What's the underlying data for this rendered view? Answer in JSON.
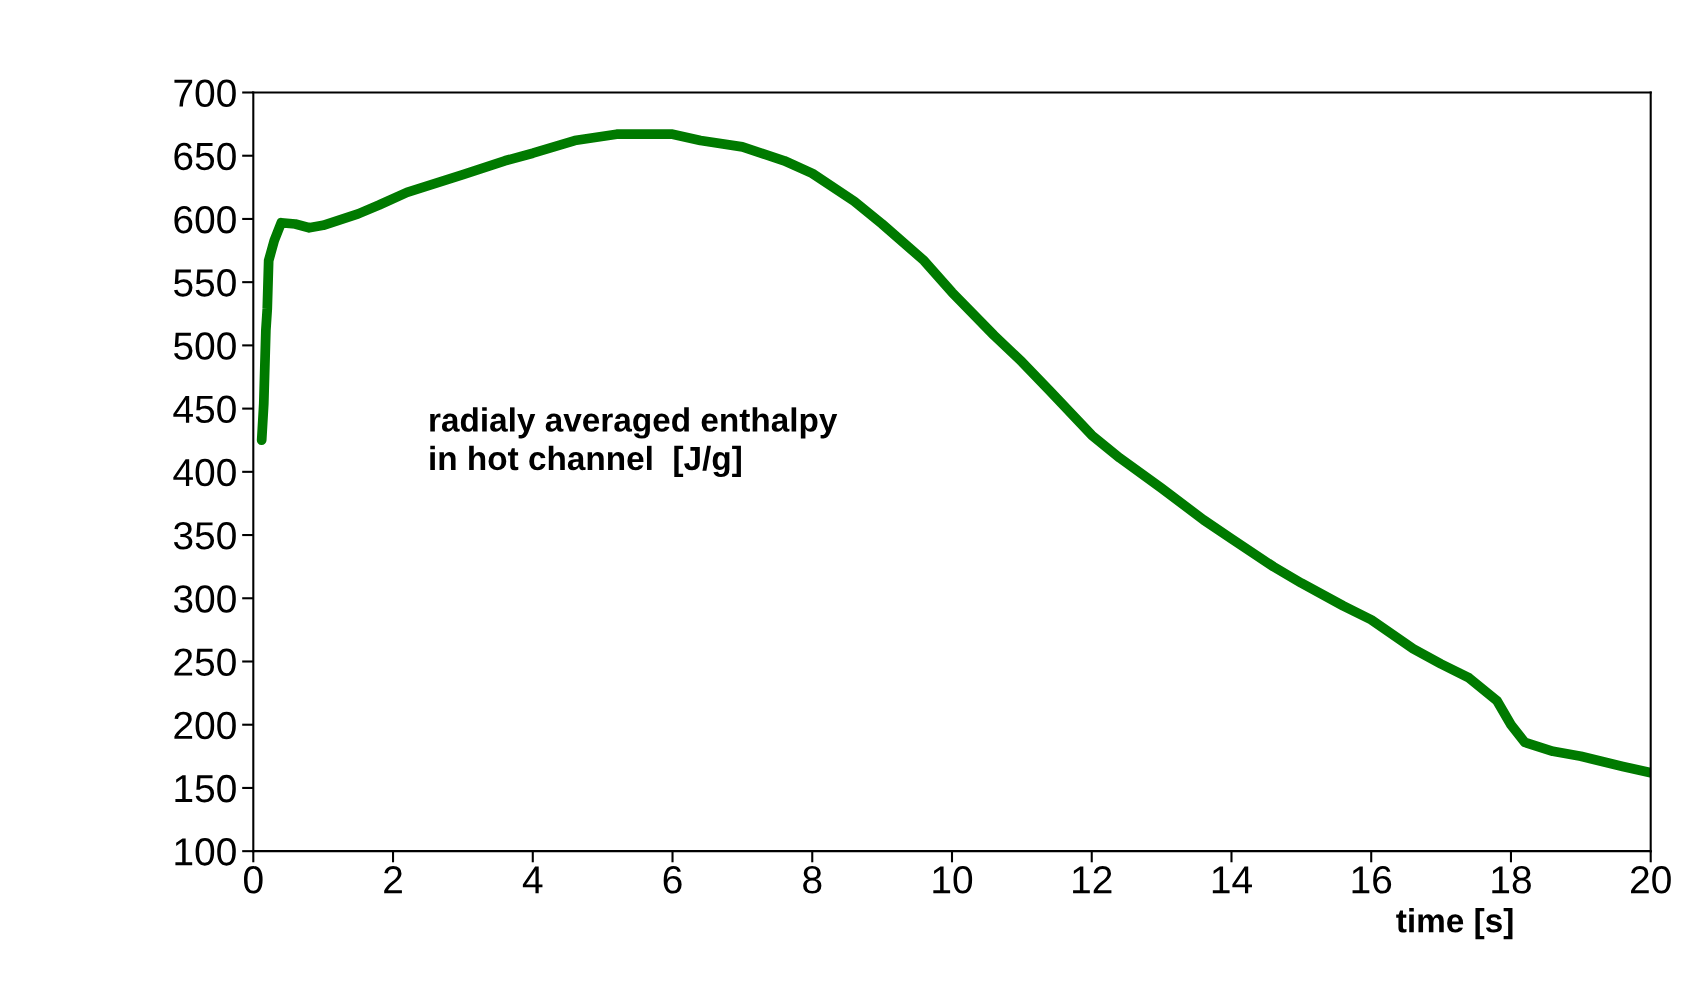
{
  "chart_data": {
    "type": "line",
    "xlabel": "time [s]",
    "annotations": [
      "radialy averaged enthalpy\nin hot channel  [J/g]"
    ],
    "xlim": [
      0,
      20
    ],
    "ylim": [
      100,
      700
    ],
    "xticks": [
      0,
      2,
      4,
      6,
      8,
      10,
      12,
      14,
      16,
      18,
      20
    ],
    "yticks": [
      100,
      150,
      200,
      250,
      300,
      350,
      400,
      450,
      500,
      550,
      600,
      650,
      700
    ],
    "grid": false,
    "series": [
      {
        "color": "#007a00",
        "x": [
          0.12,
          0.15,
          0.18,
          0.2,
          0.22,
          0.3,
          0.4,
          0.6,
          0.8,
          1.0,
          1.5,
          1.8,
          2.2,
          3.0,
          3.6,
          4.0,
          4.6,
          5.2,
          6.0,
          6.4,
          7.0,
          7.6,
          8.0,
          8.6,
          9.0,
          9.6,
          10.0,
          10.6,
          11.0,
          11.4,
          12.0,
          12.4,
          13.0,
          13.6,
          14.0,
          14.6,
          15.0,
          15.6,
          16.0,
          16.6,
          17.0,
          17.4,
          17.8,
          18.0,
          18.2,
          18.6,
          19.0,
          19.6,
          20.0
        ],
        "values": [
          425,
          454,
          512,
          529,
          567,
          583,
          597,
          596,
          593,
          595,
          604,
          611,
          621,
          635,
          646,
          652,
          662,
          667,
          667,
          662,
          657,
          646,
          636,
          614,
          596,
          567,
          542,
          508,
          487,
          464,
          429,
          411,
          387,
          362,
          347,
          325,
          312,
          294,
          283,
          260,
          248,
          237,
          219,
          200,
          186,
          179,
          175,
          167,
          162
        ]
      }
    ]
  }
}
